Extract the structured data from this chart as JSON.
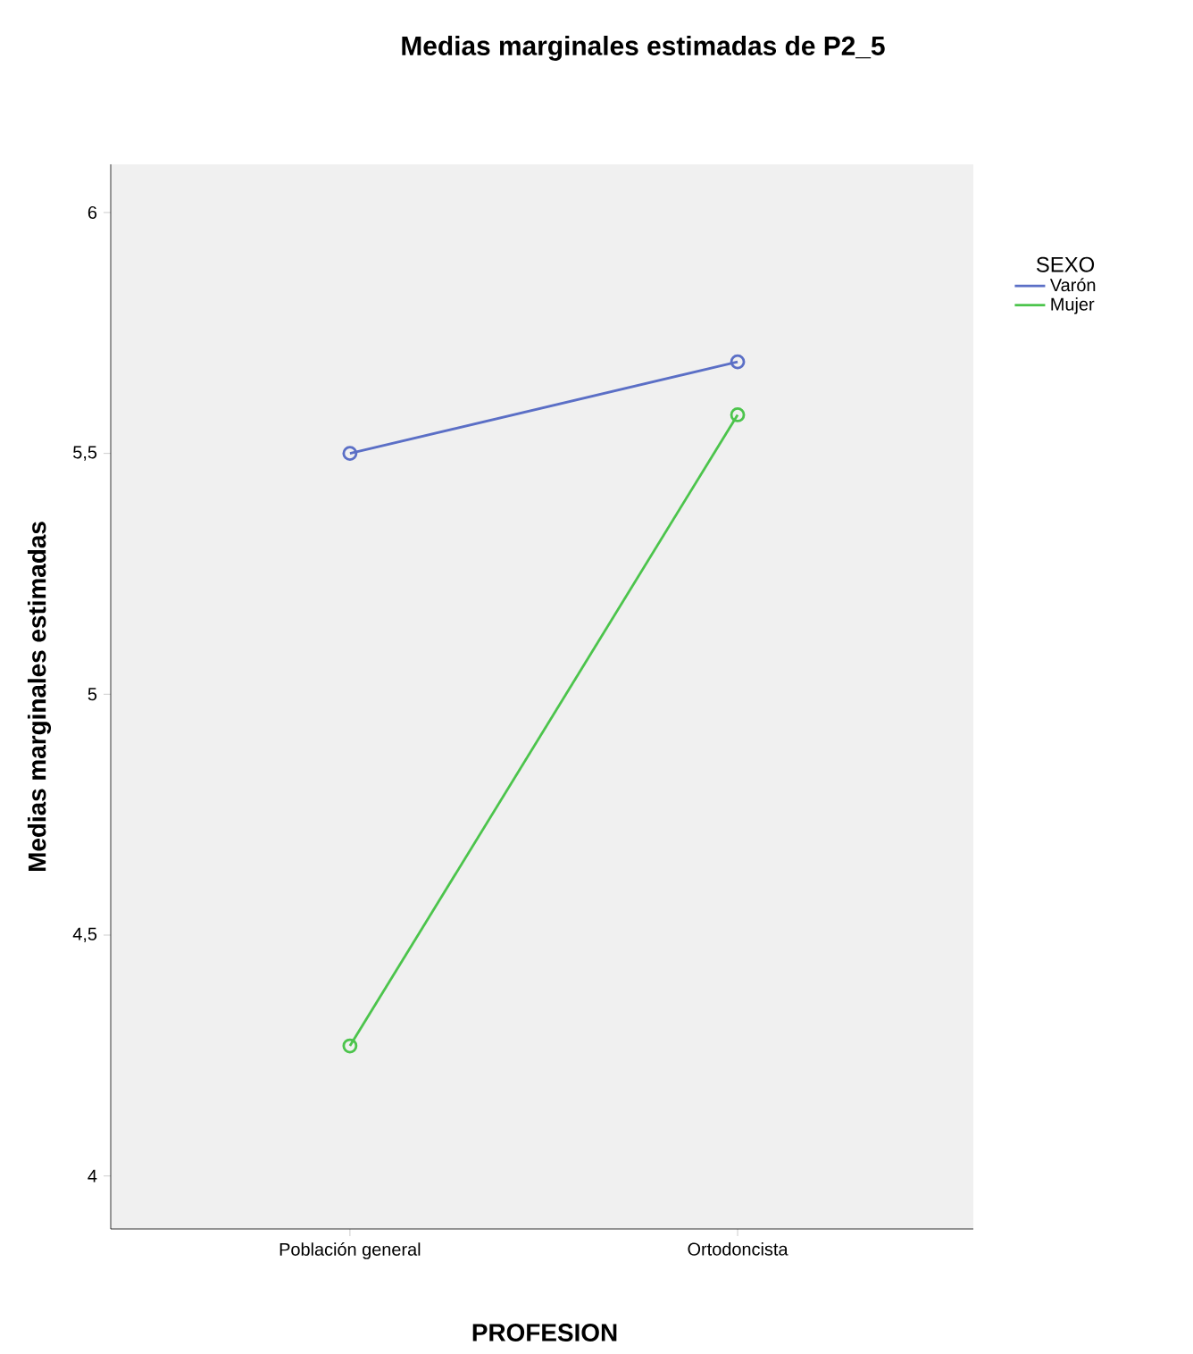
{
  "chart_data": {
    "type": "line",
    "title": "Medias marginales estimadas de P2_5",
    "xlabel": "PROFESION",
    "ylabel": "Medias marginales estimadas",
    "legend_title": "SEXO",
    "categories": [
      "Población general",
      "Ortodoncista"
    ],
    "series": [
      {
        "name": "Varón",
        "color": "#5b6fc6",
        "values": [
          5.5,
          5.69
        ]
      },
      {
        "name": "Mujer",
        "color": "#4cc44c",
        "values": [
          4.27,
          5.58
        ]
      }
    ],
    "ylim": [
      3.89,
      6.1
    ],
    "yticks": [
      {
        "value": 4,
        "label": "4"
      },
      {
        "value": 4.5,
        "label": "4,5"
      },
      {
        "value": 5,
        "label": "5"
      },
      {
        "value": 5.5,
        "label": "5,5"
      },
      {
        "value": 6,
        "label": "6"
      }
    ],
    "grid": false,
    "legend": "right",
    "marker": "circle",
    "line_style": "solid"
  }
}
